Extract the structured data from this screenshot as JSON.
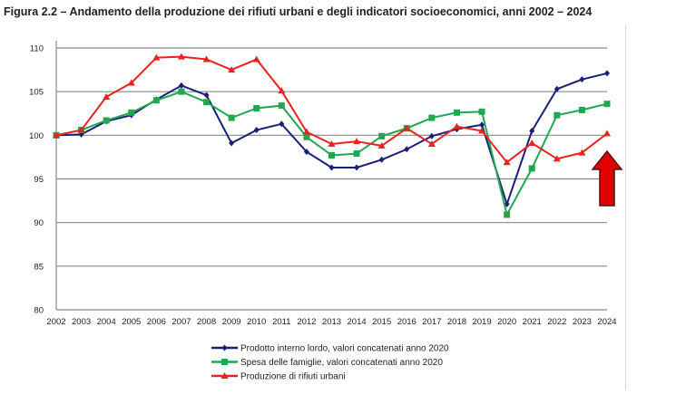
{
  "title": "Figura 2.2 – Andamento della produzione dei rifiuti urbani e degli indicatori socioeconomici, anni 2002 – 2024",
  "chart_data": {
    "type": "line",
    "title": "Figura 2.2 – Andamento della produzione dei rifiuti urbani e degli indicatori socioeconomici, anni 2002 – 2024",
    "xlabel": "",
    "ylabel": "",
    "x": [
      "2002",
      "2003",
      "2004",
      "2005",
      "2006",
      "2007",
      "2008",
      "2009",
      "2010",
      "2011",
      "2012",
      "2013",
      "2014",
      "2015",
      "2016",
      "2017",
      "2018",
      "2019",
      "2020",
      "2021",
      "2022",
      "2023",
      "2024"
    ],
    "ylim": [
      80,
      110
    ],
    "yticks": [
      80,
      85,
      90,
      95,
      100,
      105,
      110
    ],
    "grid": true,
    "legend_position": "bottom",
    "series": [
      {
        "name": "Prodotto interno lordo, valori concatenati anno 2020",
        "color": "#1a1f7a",
        "marker": "diamond",
        "values": [
          100,
          100.1,
          101.6,
          102.3,
          104.1,
          105.7,
          104.6,
          99.1,
          100.6,
          101.3,
          98.1,
          96.3,
          96.3,
          97.2,
          98.4,
          99.9,
          100.7,
          101.2,
          92.1,
          100.5,
          105.3,
          106.4,
          107.1
        ]
      },
      {
        "name": "Spesa delle famiglie, valori concatenati anno 2020",
        "color": "#1fa84f",
        "marker": "square",
        "values": [
          100,
          100.6,
          101.7,
          102.6,
          104.0,
          105.0,
          103.8,
          102.0,
          103.1,
          103.4,
          99.8,
          97.7,
          97.9,
          99.9,
          100.8,
          102.0,
          102.6,
          102.7,
          90.9,
          96.2,
          102.3,
          102.9,
          103.6
        ]
      },
      {
        "name": "Produzione di rifiuti urbani",
        "color": "#e8231f",
        "marker": "triangle",
        "values": [
          100,
          100.6,
          104.4,
          106.0,
          108.9,
          109.0,
          108.7,
          107.5,
          108.7,
          105.1,
          100.4,
          99.0,
          99.3,
          98.8,
          100.8,
          99.0,
          101.0,
          100.5,
          96.9,
          99.1,
          97.3,
          98.0,
          100.2
        ]
      }
    ],
    "annotations": [
      {
        "type": "arrow-up",
        "color": "#e00000",
        "at": "2024"
      }
    ]
  }
}
